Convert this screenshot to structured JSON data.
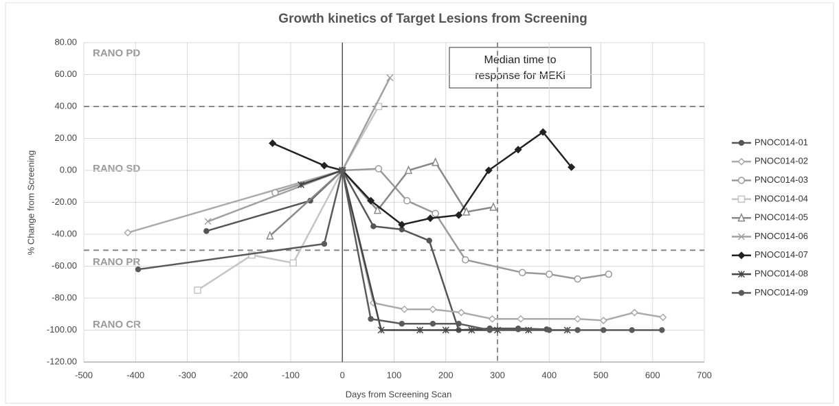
{
  "chart_data": {
    "type": "line",
    "title": "Growth kinetics of Target Lesions from Screening",
    "x_label": "Days from Screening Scan",
    "y_label": "% Change from Screening",
    "xlim": [
      -500,
      700
    ],
    "xticks": [
      -500,
      -400,
      -300,
      -200,
      -100,
      0,
      100,
      200,
      300,
      400,
      500,
      600,
      700
    ],
    "ylim": [
      -120,
      80
    ],
    "yticks": [
      {
        "value": -120,
        "label": "-120.00"
      },
      {
        "value": -100,
        "label": "-100.00"
      },
      {
        "value": -80,
        "label": "-80.00"
      },
      {
        "value": -60,
        "label": "-60.00"
      },
      {
        "value": -40,
        "label": "-40.00"
      },
      {
        "value": -20,
        "label": "-20.00"
      },
      {
        "value": 0,
        "label": "0.00"
      },
      {
        "value": 20,
        "label": "20.00"
      },
      {
        "value": 40,
        "label": "40.00"
      },
      {
        "value": 60,
        "label": "60.00"
      },
      {
        "value": 80,
        "label": "80.00"
      }
    ],
    "grid": true,
    "reference_lines": {
      "y": [
        40,
        -50
      ],
      "x": [
        300
      ]
    },
    "annotations": [
      "RANO PD",
      "RANO SD",
      "RANO PR",
      "RANO CR"
    ],
    "note": [
      "Median time to",
      "response for MEKi"
    ],
    "legend": "right",
    "series": [
      {
        "name": "PNOC014-01",
        "color": "#555555",
        "marker": "dot",
        "x": [
          -263,
          -62,
          0,
          60,
          115,
          168,
          225,
          285,
          340,
          395
        ],
        "values": [
          -38,
          -19,
          0,
          -35,
          -37,
          -44,
          -100,
          -99,
          -99,
          -99.5
        ]
      },
      {
        "name": "PNOC014-02",
        "color": "#aaaaaa",
        "marker": "diamond-open",
        "x": [
          -415,
          0,
          60,
          120,
          175,
          230,
          290,
          345,
          455,
          505,
          565,
          620
        ],
        "values": [
          -39,
          0,
          -83,
          -87,
          -87,
          -89,
          -93,
          -93,
          -93,
          -94,
          -89,
          -92
        ]
      },
      {
        "name": "PNOC014-03",
        "color": "#999999",
        "marker": "circle-open",
        "x": [
          -130,
          0,
          70,
          125,
          180,
          238,
          348,
          400,
          455,
          515
        ],
        "values": [
          -14,
          0,
          1,
          -19,
          -27,
          -56,
          -64,
          -65,
          -68,
          -65
        ]
      },
      {
        "name": "PNOC014-04",
        "color": "#c4c4c4",
        "marker": "square",
        "x": [
          -280,
          -175,
          -95,
          0,
          70
        ],
        "values": [
          -75,
          -53,
          -58,
          0,
          40
        ]
      },
      {
        "name": "PNOC014-05",
        "color": "#888888",
        "marker": "triangle",
        "x": [
          -140,
          0,
          68,
          128,
          180,
          240,
          292
        ],
        "values": [
          -41,
          0,
          -25,
          0,
          5,
          -26,
          -23
        ]
      },
      {
        "name": "PNOC014-06",
        "color": "#a0a0a0",
        "marker": "x",
        "x": [
          -260,
          0,
          92
        ],
        "values": [
          -32,
          0,
          58
        ]
      },
      {
        "name": "PNOC014-07",
        "color": "#222222",
        "marker": "diamond",
        "x": [
          -135,
          -35,
          0,
          55,
          115,
          170,
          225,
          283,
          340,
          388,
          443
        ],
        "values": [
          17,
          3,
          0,
          -19,
          -34,
          -30,
          -28,
          0,
          13,
          24,
          2
        ]
      },
      {
        "name": "PNOC014-08",
        "color": "#444444",
        "marker": "asterisk",
        "x": [
          -80,
          0,
          75,
          150,
          200,
          250,
          300,
          360,
          435
        ],
        "values": [
          -9,
          0,
          -100,
          -100,
          -100,
          -100,
          -100,
          -100,
          -100
        ]
      },
      {
        "name": "PNOC014-09",
        "color": "#5a5a5a",
        "marker": "dot",
        "x": [
          -395,
          -35,
          0,
          55,
          115,
          175,
          225,
          285,
          340,
          400,
          455,
          505,
          560,
          618
        ],
        "values": [
          -62,
          -46,
          0,
          -93,
          -96,
          -96,
          -96,
          -100,
          -99.5,
          -100,
          -100,
          -100,
          -100,
          -100
        ]
      }
    ]
  }
}
